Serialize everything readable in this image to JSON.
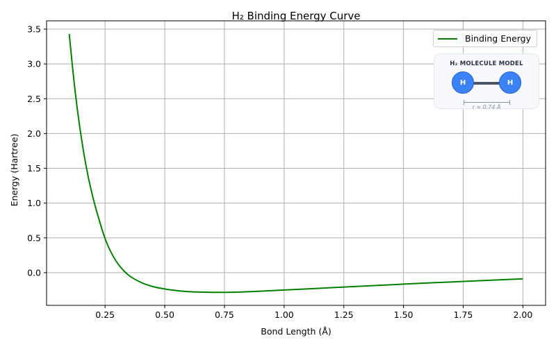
{
  "chart_data": {
    "type": "line",
    "title": "H₂ Binding Energy Curve",
    "xlabel": "Bond Length (Å)",
    "ylabel": "Energy (Hartree)",
    "xlim": [
      0.005,
      2.095
    ],
    "ylim": [
      -0.47,
      3.62
    ],
    "grid": true,
    "legend_position": "upper right",
    "x_ticks": [
      0.25,
      0.5,
      0.75,
      1.0,
      1.25,
      1.5,
      1.75,
      2.0
    ],
    "x_tick_labels": [
      "0.25",
      "0.50",
      "0.75",
      "1.00",
      "1.25",
      "1.50",
      "1.75",
      "2.00"
    ],
    "y_ticks": [
      0.0,
      0.5,
      1.0,
      1.5,
      2.0,
      2.5,
      3.0,
      3.5
    ],
    "y_tick_labels": [
      "0.0",
      "0.5",
      "1.0",
      "1.5",
      "2.0",
      "2.5",
      "3.0",
      "3.5"
    ],
    "series": [
      {
        "name": "Binding Energy",
        "color": "#008000",
        "line_width": 2,
        "x": [
          0.1,
          0.12,
          0.14,
          0.16,
          0.18,
          0.2,
          0.22,
          0.25,
          0.28,
          0.31,
          0.35,
          0.4,
          0.45,
          0.5,
          0.55,
          0.6,
          0.65,
          0.7,
          0.74,
          0.8,
          0.9,
          1.0,
          1.1,
          1.25,
          1.4,
          1.5,
          1.6,
          1.75,
          1.9,
          2.0
        ],
        "y": [
          3.43,
          2.75,
          2.19,
          1.74,
          1.37,
          1.07,
          0.82,
          0.49,
          0.26,
          0.1,
          -0.04,
          -0.14,
          -0.2,
          -0.235,
          -0.258,
          -0.272,
          -0.279,
          -0.282,
          -0.283,
          -0.28,
          -0.266,
          -0.25,
          -0.233,
          -0.207,
          -0.182,
          -0.165,
          -0.149,
          -0.126,
          -0.103,
          -0.088
        ]
      }
    ],
    "inset": {
      "title": "H₂ MOLECULE MODEL",
      "atom_label": "H",
      "bond_length_label": "r ≈ 0.74 Å",
      "atom_color": "#3b82f6",
      "bond_color": "#4b5563"
    }
  },
  "legend": {
    "label": "Binding Energy"
  },
  "inset": {
    "title": "H₂ MOLECULE MODEL",
    "atom_left": "H",
    "atom_right": "H",
    "scale_label": "r ≈ 0.74 Å"
  }
}
